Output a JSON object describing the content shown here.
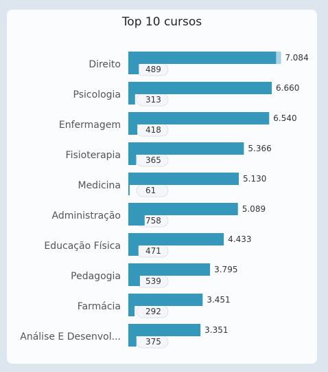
{
  "title": "Top 10 cursos",
  "colors": {
    "bar_primary": "#3598ba",
    "bar_secondary": "#3598ba",
    "pill": "#f4f6f9",
    "pill_border": "#d5dde6",
    "background": "#dde6ee",
    "card": "#fbfcfe"
  },
  "chart_data": {
    "type": "bar",
    "orientation": "horizontal",
    "title": "Top 10 cursos",
    "categories": [
      "Direito",
      "Psicologia",
      "Enfermagem",
      "Fisioterapia",
      "Medicina",
      "Administração",
      "Educação Física",
      "Pedagogia",
      "Farmácia",
      "Análise E Desenvol..."
    ],
    "series": [
      {
        "values": [
          7084,
          6660,
          6540,
          5366,
          5130,
          5089,
          4433,
          3795,
          3451,
          3351
        ],
        "labels": [
          "7.084",
          "6.660",
          "6.540",
          "5.366",
          "5.130",
          "5.089",
          "4.433",
          "3.795",
          "3.451",
          "3.351"
        ]
      },
      {
        "values": [
          489,
          313,
          418,
          365,
          61,
          758,
          471,
          539,
          292,
          375
        ],
        "labels": [
          "489",
          "313",
          "418",
          "365",
          "61",
          "758",
          "471",
          "539",
          "292",
          "375"
        ]
      }
    ],
    "xlim": [
      0,
      7200
    ],
    "legend": "none",
    "grid": false
  }
}
